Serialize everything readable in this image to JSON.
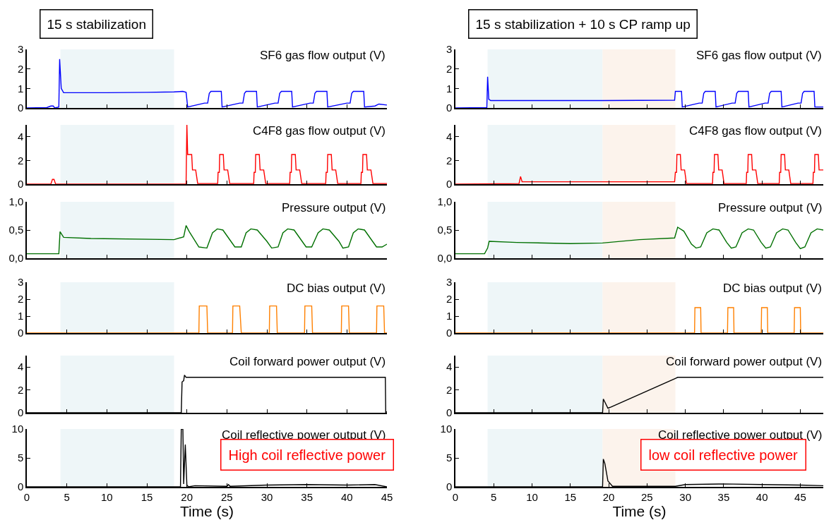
{
  "chart_data": [
    {
      "type": "line",
      "title": "SF6 gas flow output (V)",
      "annotations": [
        "15 s stabilization"
      ],
      "xlim": [
        0,
        45
      ],
      "xticks": [
        0,
        5,
        10,
        15,
        20,
        25,
        30,
        35,
        40,
        45
      ],
      "ylim": [
        0,
        3
      ],
      "yticks": [
        0,
        1,
        2,
        3
      ],
      "tick_labels": "y",
      "bands": [
        {
          "axis": "x",
          "from": 4.2,
          "to": 18.4,
          "color": "#eef6f8"
        }
      ],
      "series": [
        {
          "color": "#0000ff",
          "x": [
            0,
            2.5,
            3.0,
            3.3,
            3.5,
            4.0,
            4.1,
            4.3,
            4.6,
            10,
            15,
            18.4,
            19.5,
            19.9,
            20.1,
            22.2,
            22.6,
            22.8,
            23.0,
            24.3,
            24.4,
            26.6,
            27.0,
            27.2,
            27.4,
            28.7,
            28.8,
            31.0,
            31.4,
            31.6,
            31.8,
            33.1,
            33.2,
            35.4,
            35.8,
            36.0,
            36.2,
            37.5,
            37.6,
            40.0,
            40.4,
            40.6,
            40.8,
            42.1,
            42.2,
            43.5,
            44.0,
            45
          ],
          "values": [
            0,
            0.02,
            0.1,
            0.1,
            0,
            0.05,
            2.5,
            1.0,
            0.78,
            0.78,
            0.8,
            0.82,
            0.85,
            0.8,
            0.05,
            0.25,
            0.25,
            0.75,
            0.85,
            0.85,
            0.05,
            0.25,
            0.25,
            0.75,
            0.85,
            0.85,
            0.05,
            0.25,
            0.25,
            0.75,
            0.85,
            0.85,
            0.05,
            0.25,
            0.25,
            0.75,
            0.85,
            0.85,
            0.05,
            0.25,
            0.25,
            0.75,
            0.85,
            0.85,
            0.05,
            0.1,
            0.2,
            0.15
          ]
        }
      ]
    },
    {
      "type": "line",
      "title": "C4F8 gas flow output (V)",
      "xlim": [
        0,
        45
      ],
      "xticks": [
        0,
        5,
        10,
        15,
        20,
        25,
        30,
        35,
        40,
        45
      ],
      "ylim": [
        0,
        5
      ],
      "yticks": [
        0,
        2,
        4
      ],
      "tick_labels": "y",
      "bands": [
        {
          "axis": "x",
          "from": 4.2,
          "to": 18.4,
          "color": "#eef6f8"
        }
      ],
      "series": [
        {
          "color": "#ff0000",
          "x": [
            0,
            3.0,
            3.2,
            3.4,
            3.6,
            19.9,
            20.0,
            20.1,
            20.6,
            20.7,
            21.1,
            21.35,
            23.85,
            23.9,
            24.05,
            24.1,
            24.55,
            24.65,
            25.1,
            25.35,
            28.35,
            28.4,
            28.55,
            28.6,
            29.05,
            29.15,
            29.6,
            29.85,
            32.85,
            32.9,
            33.05,
            33.1,
            33.55,
            33.65,
            34.1,
            34.35,
            37.35,
            37.4,
            37.55,
            37.6,
            38.05,
            38.15,
            38.6,
            38.85,
            41.75,
            41.8,
            41.95,
            42.0,
            42.45,
            42.55,
            43.0,
            43.25,
            45
          ],
          "values": [
            0,
            0,
            0.4,
            0.4,
            0,
            0,
            5,
            2.5,
            2.5,
            1.2,
            1.2,
            0.05,
            0.05,
            1,
            1,
            2.5,
            2.5,
            1.2,
            1.2,
            0.05,
            0.05,
            1,
            1,
            2.5,
            2.5,
            1.2,
            1.2,
            0.05,
            0.05,
            1,
            1,
            2.5,
            2.5,
            1.2,
            1.2,
            0.05,
            0.05,
            1,
            1,
            2.5,
            2.5,
            1.2,
            1.2,
            0.05,
            0.05,
            1,
            1,
            2.5,
            2.5,
            1.2,
            1.2,
            0.05,
            0.05
          ]
        }
      ]
    },
    {
      "type": "line",
      "title": "Pressure output (V)",
      "xlim": [
        0,
        45
      ],
      "xticks": [
        0,
        5,
        10,
        15,
        20,
        25,
        30,
        35,
        40,
        45
      ],
      "ylim": [
        0,
        1
      ],
      "yticks": [
        {
          "value": 0,
          "label": "0,0"
        },
        {
          "value": 0.5,
          "label": "0,5"
        },
        {
          "value": 1,
          "label": "1,0"
        }
      ],
      "tick_labels": "y",
      "bands": [
        {
          "axis": "x",
          "from": 4.2,
          "to": 18.4,
          "color": "#eef6f8"
        }
      ],
      "series": [
        {
          "color": "#007000",
          "x": [
            0,
            4.0,
            4.15,
            4.6,
            8,
            18.4,
            19.6,
            19.9,
            20.3,
            21.5,
            22.5,
            23.2,
            23.8,
            24.5,
            25.5,
            26.0,
            26.8,
            27.4,
            28.0,
            28.8,
            30.0,
            30.6,
            31.4,
            32.0,
            32.6,
            33.4,
            34.4,
            34.9,
            35.6,
            36.4,
            37.0,
            37.8,
            39.0,
            39.5,
            40.2,
            40.8,
            41.4,
            42.2,
            43.2,
            43.7,
            44.4,
            45
          ],
          "values": [
            0.08,
            0.08,
            0.47,
            0.37,
            0.35,
            0.33,
            0.38,
            0.58,
            0.47,
            0.2,
            0.18,
            0.45,
            0.52,
            0.5,
            0.3,
            0.2,
            0.2,
            0.45,
            0.52,
            0.5,
            0.3,
            0.18,
            0.2,
            0.45,
            0.52,
            0.5,
            0.3,
            0.2,
            0.2,
            0.45,
            0.52,
            0.5,
            0.3,
            0.18,
            0.2,
            0.45,
            0.52,
            0.5,
            0.3,
            0.2,
            0.2,
            0.25
          ]
        }
      ]
    },
    {
      "type": "line",
      "title": "DC bias output (V)",
      "xlim": [
        0,
        45
      ],
      "xticks": [
        0,
        5,
        10,
        15,
        20,
        25,
        30,
        35,
        40,
        45
      ],
      "ylim": [
        0,
        3
      ],
      "yticks": [
        0,
        1,
        2,
        3
      ],
      "tick_labels": "y",
      "bands": [
        {
          "axis": "x",
          "from": 4.2,
          "to": 18.4,
          "color": "#eef6f8"
        }
      ],
      "series": [
        {
          "color": "#ff8000",
          "x": [
            0,
            21.5,
            21.55,
            22.5,
            22.6,
            25.7,
            25.75,
            26.6,
            26.8,
            30.3,
            30.35,
            31.2,
            31.3,
            34.7,
            34.75,
            35.6,
            35.7,
            39.3,
            39.35,
            40.2,
            40.3,
            43.7,
            43.75,
            44.6,
            44.7,
            45
          ],
          "values": [
            0,
            0,
            1.6,
            1.6,
            0,
            0,
            1.6,
            1.6,
            0,
            0,
            1.6,
            1.6,
            0,
            0,
            1.6,
            1.6,
            0,
            0,
            1.6,
            1.6,
            0,
            0,
            1.6,
            1.6,
            0,
            0
          ]
        }
      ]
    },
    {
      "type": "line",
      "title": "Coil forward power output (V)",
      "xlim": [
        0,
        45
      ],
      "xticks": [
        0,
        5,
        10,
        15,
        20,
        25,
        30,
        35,
        40,
        45
      ],
      "ylim": [
        0,
        5
      ],
      "yticks": [
        0,
        2,
        4
      ],
      "tick_labels": "y",
      "bands": [
        {
          "axis": "x",
          "from": 4.2,
          "to": 18.4,
          "color": "#eef6f8"
        }
      ],
      "series": [
        {
          "color": "#000000",
          "x": [
            0,
            19.3,
            19.4,
            19.6,
            19.7,
            19.9,
            44.8,
            44.85,
            45
          ],
          "values": [
            0,
            0,
            2.7,
            2.8,
            3.3,
            3.1,
            3.1,
            0,
            0.1
          ]
        }
      ]
    },
    {
      "type": "line",
      "title": "Coil reflective power output (V)",
      "xlabel": "Time (s)",
      "annotations": [
        "High coil reflective power"
      ],
      "xlim": [
        0,
        45
      ],
      "xticks": [
        0,
        5,
        10,
        15,
        20,
        25,
        30,
        35,
        40,
        45
      ],
      "ylim": [
        0,
        10
      ],
      "yticks": [
        0,
        5,
        10
      ],
      "bands": [
        {
          "axis": "x",
          "from": 4.2,
          "to": 18.4,
          "color": "#eef6f8"
        }
      ],
      "series": [
        {
          "color": "#000000",
          "x": [
            0,
            19.2,
            19.3,
            19.5,
            19.6,
            19.8,
            20.0,
            20.2,
            21,
            25,
            25.2,
            25.4,
            30,
            35,
            40,
            43.5,
            45
          ],
          "values": [
            0,
            0,
            10,
            10,
            0.5,
            7.3,
            0.3,
            0,
            0.2,
            0.1,
            0.4,
            0.1,
            0.3,
            0.4,
            0.3,
            0.4,
            0
          ]
        }
      ]
    },
    {
      "type": "line",
      "title": "SF6 gas flow output (V)",
      "annotations": [
        "15 s stabilization + 10 s CP ramp up"
      ],
      "xlim": [
        0,
        48
      ],
      "xticks": [
        0,
        5,
        10,
        15,
        20,
        25,
        30,
        35,
        40,
        45
      ],
      "ylim": [
        0,
        3
      ],
      "yticks": [
        0,
        1,
        2,
        3
      ],
      "tick_labels": "y",
      "bands": [
        {
          "axis": "x",
          "from": 4.2,
          "to": 19.2,
          "color": "#eef6f8"
        },
        {
          "axis": "x",
          "from": 19.2,
          "to": 28.7,
          "color": "#fcf3ec"
        }
      ],
      "series": [
        {
          "color": "#0000ff",
          "x": [
            0,
            4.1,
            4.2,
            4.35,
            4.6,
            19.2,
            28.6,
            28.7,
            29.5,
            29.6,
            31.8,
            32.2,
            32.4,
            32.6,
            33.9,
            34.0,
            36.1,
            36.5,
            36.7,
            36.9,
            38.2,
            38.3,
            40.4,
            40.8,
            41.0,
            41.2,
            42.5,
            42.6,
            44.7,
            45.1,
            45.3,
            45.5,
            46.8,
            46.9,
            48
          ],
          "values": [
            0,
            0.02,
            1.6,
            0.45,
            0.38,
            0.38,
            0.4,
            0.85,
            0.85,
            0.05,
            0.25,
            0.25,
            0.75,
            0.85,
            0.85,
            0.05,
            0.25,
            0.25,
            0.75,
            0.85,
            0.85,
            0.05,
            0.25,
            0.25,
            0.75,
            0.85,
            0.85,
            0.05,
            0.25,
            0.25,
            0.75,
            0.85,
            0.85,
            0.05,
            0.05
          ]
        }
      ]
    },
    {
      "type": "line",
      "title": "C4F8 gas flow output (V)",
      "xlim": [
        0,
        48
      ],
      "xticks": [
        0,
        5,
        10,
        15,
        20,
        25,
        30,
        35,
        40,
        45
      ],
      "ylim": [
        0,
        5
      ],
      "yticks": [
        0,
        2,
        4
      ],
      "tick_labels": "y",
      "bands": [
        {
          "axis": "x",
          "from": 4.2,
          "to": 19.2,
          "color": "#eef6f8"
        },
        {
          "axis": "x",
          "from": 19.2,
          "to": 28.7,
          "color": "#fcf3ec"
        }
      ],
      "series": [
        {
          "color": "#ff0000",
          "x": [
            0,
            8.3,
            8.5,
            8.7,
            28.6,
            28.7,
            28.85,
            28.9,
            29.35,
            29.45,
            29.9,
            30.15,
            33.55,
            33.6,
            33.75,
            33.8,
            34.25,
            34.35,
            34.8,
            35.05,
            37.95,
            38.0,
            38.15,
            38.2,
            38.65,
            38.75,
            39.2,
            39.45,
            42.25,
            42.3,
            42.45,
            42.5,
            42.95,
            43.05,
            43.5,
            43.75,
            46.65,
            46.7,
            46.85,
            46.9,
            47.35,
            47.45,
            48.0
          ],
          "values": [
            0,
            0.05,
            0.65,
            0.2,
            0.2,
            1,
            1,
            2.5,
            2.5,
            1.2,
            1.2,
            0.05,
            0.05,
            1,
            1,
            2.5,
            2.5,
            1.2,
            1.2,
            0.05,
            0.05,
            1,
            1,
            2.5,
            2.5,
            1.2,
            1.2,
            0.05,
            0.05,
            1,
            1,
            2.5,
            2.5,
            1.2,
            1.2,
            0.05,
            0.05,
            1,
            1,
            2.5,
            2.5,
            1.2,
            1.2
          ]
        }
      ]
    },
    {
      "type": "line",
      "title": "Pressure output (V)",
      "xlim": [
        0,
        48
      ],
      "xticks": [
        0,
        5,
        10,
        15,
        20,
        25,
        30,
        35,
        40,
        45
      ],
      "ylim": [
        0,
        1
      ],
      "yticks": [
        {
          "value": 0,
          "label": "0,0"
        },
        {
          "value": 0.5,
          "label": "0,5"
        },
        {
          "value": 1,
          "label": "1,0"
        }
      ],
      "tick_labels": "y",
      "bands": [
        {
          "axis": "x",
          "from": 4.2,
          "to": 19.2,
          "color": "#eef6f8"
        },
        {
          "axis": "x",
          "from": 19.2,
          "to": 28.7,
          "color": "#fcf3ec"
        }
      ],
      "series": [
        {
          "color": "#007000",
          "x": [
            0,
            3.8,
            4.2,
            4.4,
            8,
            15,
            19.2,
            24,
            28.6,
            29.0,
            29.8,
            30.8,
            31.4,
            32.0,
            32.8,
            33.6,
            34.4,
            35.4,
            36.0,
            36.6,
            37.4,
            38.2,
            38.9,
            39.9,
            40.5,
            41.1,
            41.9,
            42.7,
            43.4,
            44.4,
            45.0,
            45.6,
            46.4,
            47.2,
            48
          ],
          "values": [
            0.08,
            0.08,
            0.18,
            0.3,
            0.28,
            0.26,
            0.27,
            0.33,
            0.36,
            0.55,
            0.48,
            0.25,
            0.18,
            0.2,
            0.45,
            0.52,
            0.5,
            0.28,
            0.18,
            0.2,
            0.45,
            0.52,
            0.5,
            0.28,
            0.18,
            0.2,
            0.45,
            0.52,
            0.5,
            0.28,
            0.17,
            0.2,
            0.45,
            0.52,
            0.5
          ]
        }
      ]
    },
    {
      "type": "line",
      "title": "DC bias output (V)",
      "xlim": [
        0,
        48
      ],
      "xticks": [
        0,
        5,
        10,
        15,
        20,
        25,
        30,
        35,
        40,
        45
      ],
      "ylim": [
        0,
        3
      ],
      "yticks": [
        0,
        1,
        2,
        3
      ],
      "tick_labels": "y",
      "bands": [
        {
          "axis": "x",
          "from": 4.2,
          "to": 19.2,
          "color": "#eef6f8"
        },
        {
          "axis": "x",
          "from": 19.2,
          "to": 28.7,
          "color": "#fcf3ec"
        }
      ],
      "series": [
        {
          "color": "#ff8000",
          "x": [
            0,
            31.2,
            31.25,
            32.0,
            32.05,
            35.5,
            35.55,
            36.3,
            36.35,
            39.9,
            39.95,
            40.7,
            40.75,
            44.2,
            44.25,
            45.0,
            45.05,
            48
          ],
          "values": [
            0,
            0,
            1.5,
            1.5,
            0,
            0,
            1.5,
            1.5,
            0,
            0,
            1.5,
            1.5,
            0,
            0,
            1.5,
            1.5,
            0,
            0
          ]
        }
      ]
    },
    {
      "type": "line",
      "title": "Coil forward power output (V)",
      "xlim": [
        0,
        48
      ],
      "xticks": [
        0,
        5,
        10,
        15,
        20,
        25,
        30,
        35,
        40,
        45
      ],
      "ylim": [
        0,
        5
      ],
      "yticks": [
        0,
        2,
        4
      ],
      "tick_labels": "y",
      "bands": [
        {
          "axis": "x",
          "from": 4.2,
          "to": 19.2,
          "color": "#eef6f8"
        },
        {
          "axis": "x",
          "from": 19.2,
          "to": 28.7,
          "color": "#fcf3ec"
        }
      ],
      "series": [
        {
          "color": "#000000",
          "x": [
            0,
            19.2,
            19.3,
            19.6,
            19.9,
            20.3,
            28.7,
            29.0,
            48
          ],
          "values": [
            0,
            0,
            1.2,
            0.8,
            0.4,
            0.5,
            3.0,
            3.1,
            3.1
          ]
        }
      ]
    },
    {
      "type": "line",
      "title": "Coil reflective power output (V)",
      "xlabel": "Time (s)",
      "annotations": [
        "low coil reflective power"
      ],
      "xlim": [
        0,
        48
      ],
      "xticks": [
        0,
        5,
        10,
        15,
        20,
        25,
        30,
        35,
        40,
        45
      ],
      "ylim": [
        0,
        10
      ],
      "yticks": [
        0,
        5,
        10
      ],
      "bands": [
        {
          "axis": "x",
          "from": 4.2,
          "to": 19.2,
          "color": "#eef6f8"
        },
        {
          "axis": "x",
          "from": 19.2,
          "to": 28.7,
          "color": "#fcf3ec"
        }
      ],
      "series": [
        {
          "color": "#000000",
          "x": [
            0,
            19.2,
            19.3,
            19.5,
            19.9,
            20.5,
            28.7,
            30,
            35,
            40,
            45,
            48
          ],
          "values": [
            0,
            0,
            4.8,
            4.0,
            1.0,
            0.1,
            0.1,
            0.4,
            0.5,
            0.4,
            0.3,
            0.2
          ]
        }
      ]
    }
  ]
}
